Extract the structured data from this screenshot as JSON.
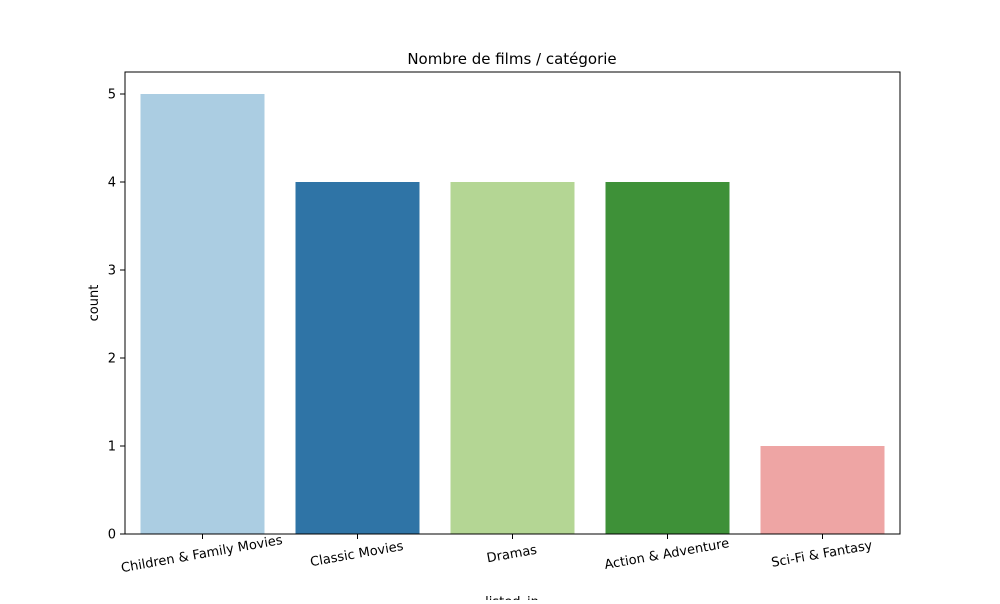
{
  "chart_data": {
    "type": "bar",
    "title": "Nombre de films / catégorie",
    "xlabel": "listed_in",
    "ylabel": "count",
    "categories": [
      "Children & Family Movies",
      "Classic Movies",
      "Dramas",
      "Action & Adventure",
      "Sci-Fi & Fantasy"
    ],
    "values": [
      5,
      4,
      4,
      4,
      1
    ],
    "colors": [
      "#abcde2",
      "#2f74a6",
      "#b4d694",
      "#3e9138",
      "#eea5a4"
    ],
    "ylim": [
      0,
      5.25
    ],
    "yticks": [
      0,
      1,
      2,
      3,
      4,
      5
    ],
    "grid": false,
    "legend": "none"
  }
}
